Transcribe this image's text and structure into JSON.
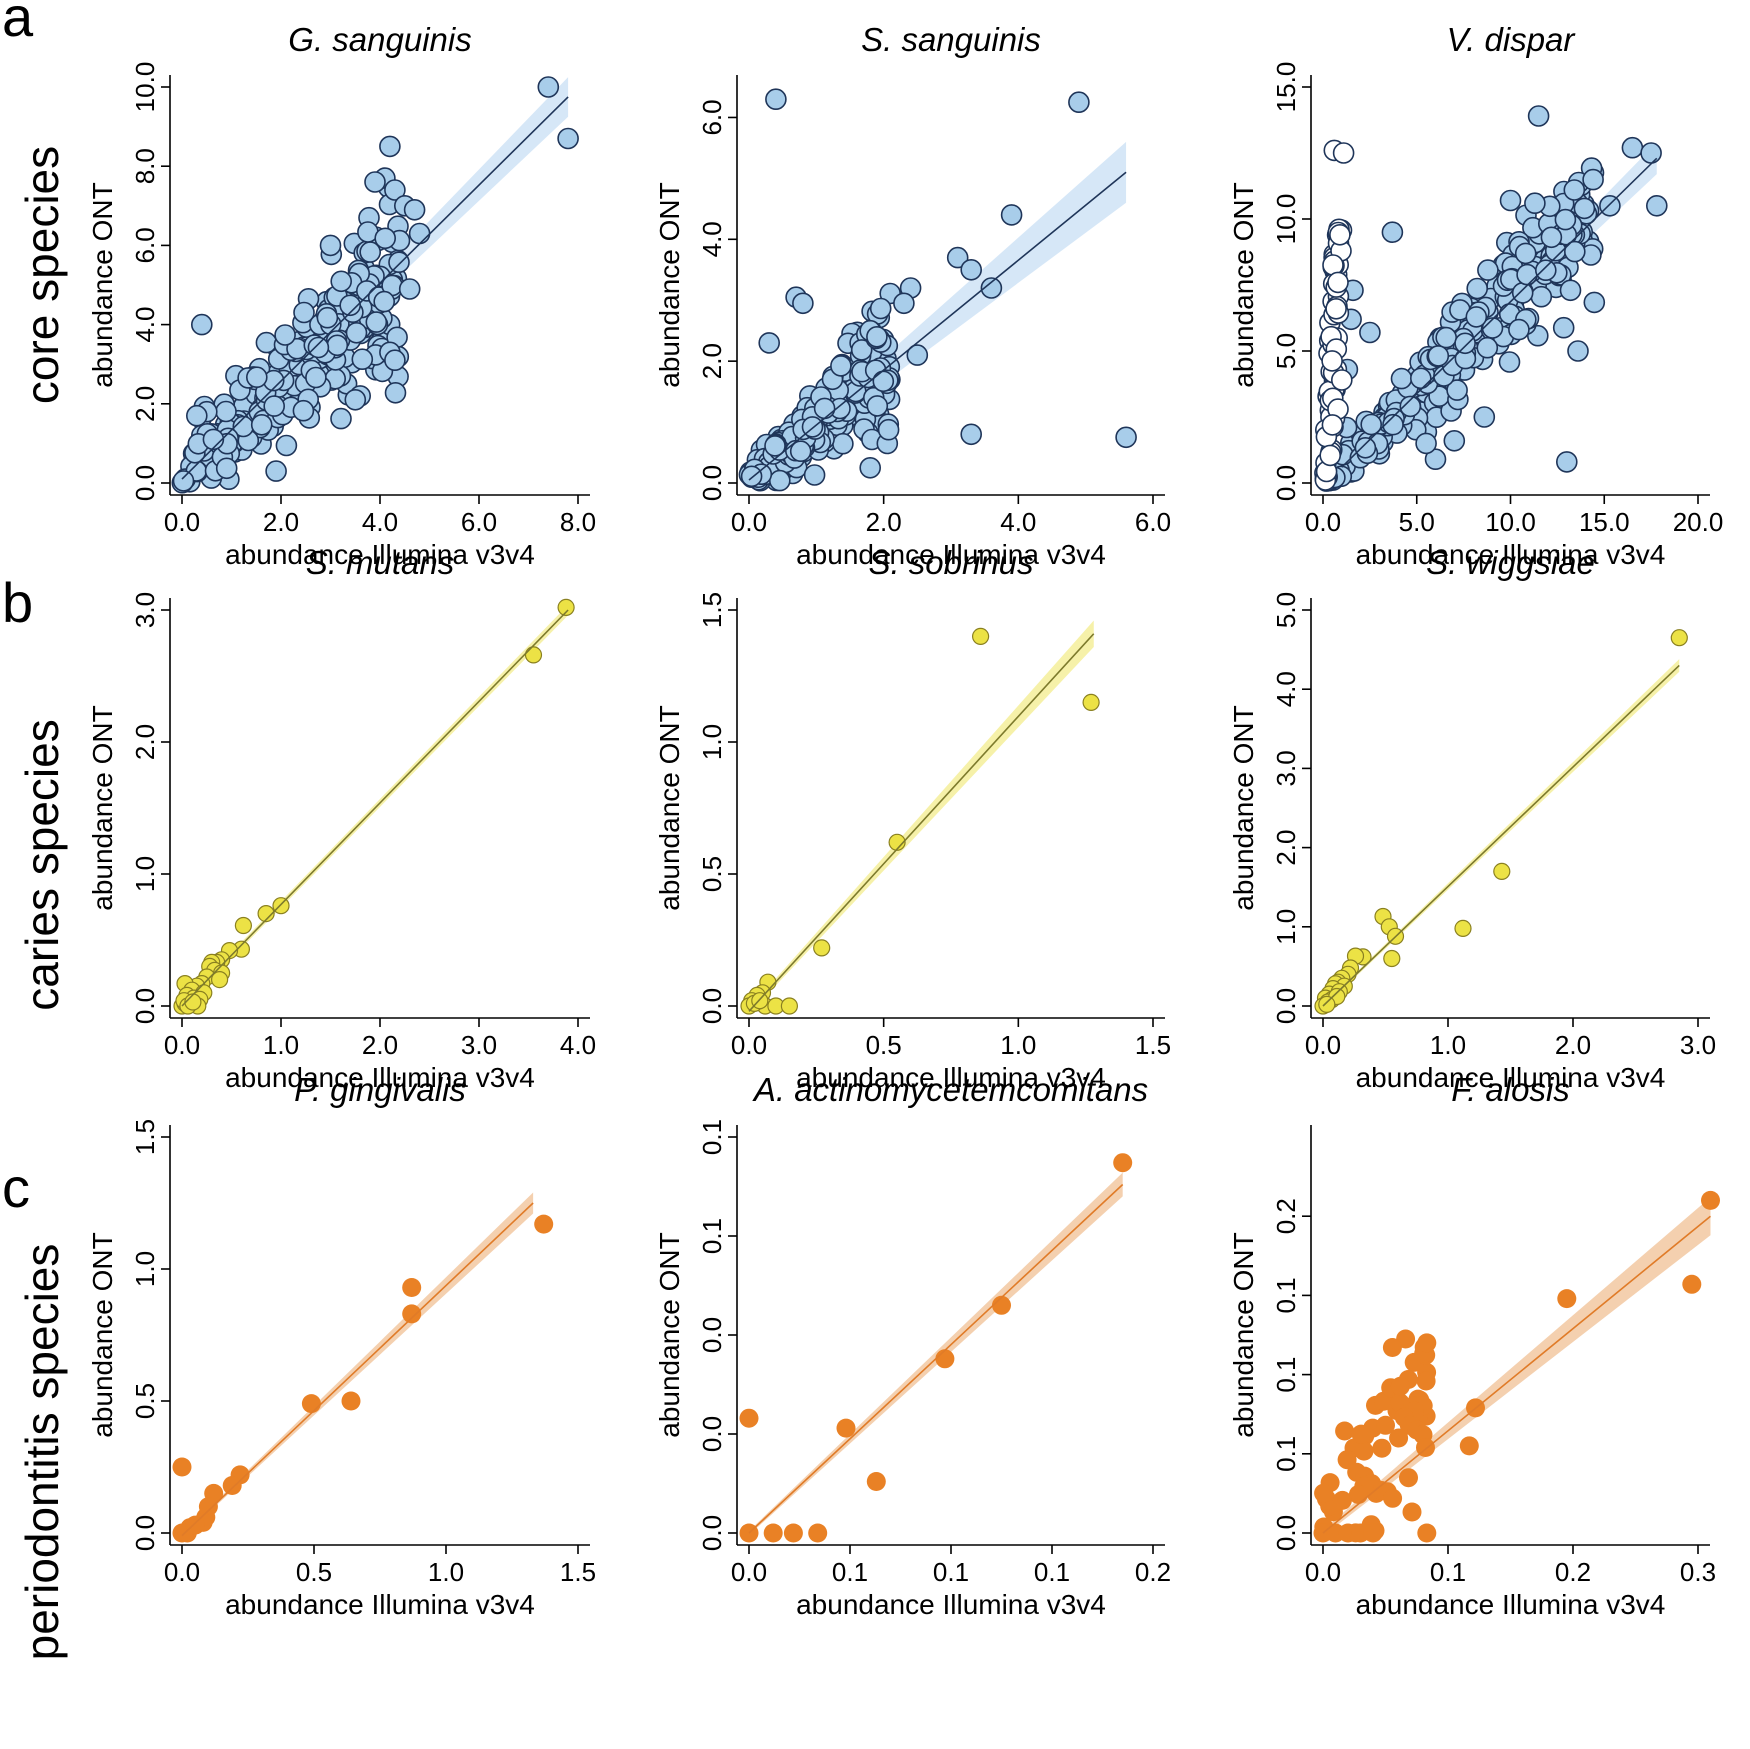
{
  "panel_letters": [
    "a",
    "b",
    "c"
  ],
  "row_labels": [
    "core species",
    "caries species",
    "periodontitis species"
  ],
  "colors": {
    "core_fill": "#a8cdea",
    "core_stroke": "#1f3559",
    "core_band": "#cfe3f6",
    "core_line": "#1f3559",
    "caries_fill": "#ece245",
    "caries_stroke": "#8a8020",
    "caries_band": "#f4ef9a",
    "caries_line": "#7d7a2c",
    "perio_fill": "#e98125",
    "perio_stroke": "#e98125",
    "perio_band": "#f2c8a1",
    "perio_line": "#e07b28",
    "hollow_fill": "#ffffff"
  },
  "chart_data": [
    {
      "type": "scatter",
      "row": 0,
      "col": 0,
      "palette": "core",
      "title": "G. sanguinis",
      "xlabel": "abundance Illumina v3v4",
      "ylabel": "abundance ONT",
      "xlim": [
        0,
        8
      ],
      "ylim": [
        0,
        10
      ],
      "xticks": [
        0,
        2,
        4,
        6,
        8
      ],
      "xtick_labels": [
        "0.0",
        "2.0",
        "4.0",
        "6.0",
        "8.0"
      ],
      "yticks": [
        0,
        2,
        4,
        6,
        8,
        10
      ],
      "ytick_labels": [
        "0.0",
        "2.0",
        "4.0",
        "6.0",
        "8.0",
        "10.0"
      ],
      "fit": {
        "x1": 0.0,
        "y1": 0.1,
        "x2": 7.8,
        "y2": 9.75,
        "band": [
          0.05,
          0.5
        ]
      },
      "cloud": {
        "n": 320,
        "xmax": 4.4,
        "slope": 1.2,
        "intercept": 0.1,
        "spread": 0.8,
        "seed": 11
      },
      "points": [
        [
          7.4,
          10.0
        ],
        [
          7.8,
          8.7
        ],
        [
          4.2,
          8.5
        ],
        [
          4.1,
          7.7
        ],
        [
          3.9,
          7.6
        ],
        [
          4.3,
          7.4
        ],
        [
          4.5,
          7.0
        ],
        [
          4.7,
          6.9
        ],
        [
          4.8,
          6.3
        ],
        [
          3.0,
          6.0
        ],
        [
          0.4,
          4.0
        ],
        [
          4.6,
          4.9
        ],
        [
          4.2,
          3.3
        ],
        [
          4.3,
          3.1
        ],
        [
          3.6,
          2.2
        ],
        [
          3.5,
          2.1
        ],
        [
          1.9,
          0.3
        ],
        [
          0.5,
          1.8
        ],
        [
          0.3,
          1.7
        ]
      ]
    },
    {
      "type": "scatter",
      "row": 0,
      "col": 1,
      "palette": "core",
      "title": "S. sanguinis",
      "xlabel": "abundance Illumina v3v4",
      "ylabel": "abundance ONT",
      "xlim": [
        0,
        6
      ],
      "ylim": [
        0,
        6.5
      ],
      "xticks": [
        0,
        2,
        4,
        6
      ],
      "xtick_labels": [
        "0.0",
        "2.0",
        "4.0",
        "6.0"
      ],
      "yticks": [
        0,
        2,
        4,
        6
      ],
      "ytick_labels": [
        "0.0",
        "2.0",
        "4.0",
        "6.0"
      ],
      "fit": {
        "x1": 0.0,
        "y1": 0.05,
        "x2": 5.6,
        "y2": 5.1,
        "band": [
          0.05,
          0.5
        ]
      },
      "cloud": {
        "n": 260,
        "xmax": 2.1,
        "slope": 0.95,
        "intercept": 0.05,
        "spread": 0.35,
        "seed": 23
      },
      "points": [
        [
          0.4,
          6.3
        ],
        [
          4.9,
          6.25
        ],
        [
          3.9,
          4.4
        ],
        [
          3.1,
          3.7
        ],
        [
          3.3,
          3.5
        ],
        [
          3.6,
          3.2
        ],
        [
          2.4,
          3.2
        ],
        [
          2.3,
          2.95
        ],
        [
          0.7,
          3.05
        ],
        [
          0.8,
          2.95
        ],
        [
          0.3,
          2.3
        ],
        [
          1.8,
          0.25
        ],
        [
          3.3,
          0.8
        ],
        [
          5.6,
          0.75
        ],
        [
          2.5,
          2.1
        ],
        [
          1.8,
          2.5
        ],
        [
          1.9,
          2.4
        ]
      ]
    },
    {
      "type": "scatter",
      "row": 0,
      "col": 2,
      "palette": "core",
      "title": "V. dispar",
      "xlabel": "abundance Illumina v3v4",
      "ylabel": "abundance ONT",
      "xlim": [
        0,
        20
      ],
      "ylim": [
        0,
        15
      ],
      "xticks": [
        0,
        5,
        10,
        15,
        20
      ],
      "xtick_labels": [
        "0.0",
        "5.0",
        "10.0",
        "15.0",
        "20.0"
      ],
      "yticks": [
        0,
        5,
        10,
        15
      ],
      "ytick_labels": [
        "0.0",
        "5.0",
        "10.0",
        "15.0"
      ],
      "fit": {
        "x1": 1.0,
        "y1": 0.6,
        "x2": 17.8,
        "y2": 12.3,
        "band": [
          0.1,
          0.6
        ]
      },
      "cloud": {
        "n": 300,
        "xmax": 14.5,
        "slope": 0.7,
        "intercept": -0.1,
        "spread": 1.0,
        "seed": 37
      },
      "hollow_cloud": {
        "n": 60,
        "xmin": 0.0,
        "xmax": 1.0,
        "ymax": 9.7,
        "seed": 41
      },
      "points": [
        [
          11.5,
          13.9
        ],
        [
          16.5,
          12.7
        ],
        [
          17.5,
          12.5
        ],
        [
          17.8,
          10.5
        ],
        [
          10.0,
          10.7
        ],
        [
          11.3,
          10.6
        ],
        [
          13.4,
          11.1
        ],
        [
          15.3,
          10.5
        ],
        [
          13.2,
          7.3
        ],
        [
          13.6,
          5.0
        ],
        [
          3.7,
          9.5
        ],
        [
          1.6,
          7.3
        ],
        [
          1.5,
          6.2
        ],
        [
          2.5,
          5.7
        ],
        [
          13.0,
          0.8
        ],
        [
          6.0,
          0.9
        ],
        [
          8.6,
          2.5
        ],
        [
          5.5,
          1.5
        ],
        [
          7.0,
          1.6
        ],
        [
          1.3,
          4.3
        ]
      ],
      "hollow_points": [
        [
          0.6,
          12.6
        ],
        [
          1.1,
          12.5
        ],
        [
          0.9,
          9.4
        ],
        [
          0.8,
          7.6
        ],
        [
          0.7,
          6.6
        ],
        [
          1.0,
          3.9
        ],
        [
          0.8,
          2.8
        ],
        [
          0.5,
          2.2
        ]
      ]
    },
    {
      "type": "scatter",
      "row": 1,
      "col": 0,
      "palette": "caries",
      "title": "S. mutans",
      "xlabel": "abundance Illumina v3v4",
      "ylabel": "abundance ONT",
      "xlim": [
        0,
        4
      ],
      "ylim": [
        0,
        3
      ],
      "xticks": [
        0,
        1,
        2,
        3,
        4
      ],
      "xtick_labels": [
        "0.0",
        "1.0",
        "2.0",
        "3.0",
        "4.0"
      ],
      "yticks": [
        0,
        1,
        2,
        3
      ],
      "ytick_labels": [
        "0.0",
        "1.0",
        "2.0",
        "3.0"
      ],
      "fit": {
        "x1": 0.0,
        "y1": 0.0,
        "x2": 3.9,
        "y2": 3.0,
        "band": [
          0.02,
          0.04
        ]
      },
      "points": [
        [
          3.88,
          3.02
        ],
        [
          3.55,
          2.66
        ],
        [
          1.0,
          0.76
        ],
        [
          0.85,
          0.7
        ],
        [
          0.62,
          0.61
        ],
        [
          0.6,
          0.43
        ],
        [
          0.48,
          0.42
        ],
        [
          0.4,
          0.35
        ],
        [
          0.35,
          0.33
        ],
        [
          0.3,
          0.33
        ],
        [
          0.28,
          0.3
        ],
        [
          0.33,
          0.27
        ],
        [
          0.4,
          0.25
        ],
        [
          0.25,
          0.22
        ],
        [
          0.38,
          0.2
        ],
        [
          0.2,
          0.17
        ],
        [
          0.15,
          0.15
        ],
        [
          0.03,
          0.17
        ],
        [
          0.1,
          0.12
        ],
        [
          0.22,
          0.1
        ],
        [
          0.05,
          0.08
        ],
        [
          0.12,
          0.06
        ],
        [
          0.18,
          0.05
        ],
        [
          0.0,
          0.0
        ],
        [
          0.03,
          0.02
        ],
        [
          0.08,
          0.02
        ],
        [
          0.16,
          0.0
        ],
        [
          0.02,
          0.04
        ],
        [
          0.06,
          0.0
        ],
        [
          0.11,
          0.03
        ]
      ]
    },
    {
      "type": "scatter",
      "row": 1,
      "col": 1,
      "palette": "caries",
      "title": "S. sobrinus",
      "xlabel": "abundance Illumina v3v4",
      "ylabel": "abundance ONT",
      "xlim": [
        0,
        1.5
      ],
      "ylim": [
        0,
        1.5
      ],
      "xticks": [
        0,
        0.5,
        1.0,
        1.5
      ],
      "xtick_labels": [
        "0.0",
        "0.5",
        "1.0",
        "1.5"
      ],
      "yticks": [
        0,
        0.5,
        1.0,
        1.5
      ],
      "ytick_labels": [
        "0.0",
        "0.5",
        "1.0",
        "1.5"
      ],
      "fit": {
        "x1": 0.0,
        "y1": -0.02,
        "x2": 1.28,
        "y2": 1.41,
        "band": [
          0.01,
          0.05
        ]
      },
      "points": [
        [
          0.86,
          1.4
        ],
        [
          1.27,
          1.15
        ],
        [
          0.55,
          0.62
        ],
        [
          0.27,
          0.22
        ],
        [
          0.07,
          0.09
        ],
        [
          0.05,
          0.05
        ],
        [
          0.03,
          0.04
        ],
        [
          0.01,
          0.02
        ],
        [
          0.0,
          0.0
        ],
        [
          0.06,
          0.0
        ],
        [
          0.1,
          0.0
        ],
        [
          0.15,
          0.0
        ],
        [
          0.02,
          0.01
        ],
        [
          0.04,
          0.02
        ]
      ]
    },
    {
      "type": "scatter",
      "row": 1,
      "col": 2,
      "palette": "caries",
      "title": "S. wiggsiae",
      "xlabel": "abundance Illumina v3v4",
      "ylabel": "abundance ONT",
      "xlim": [
        0,
        3
      ],
      "ylim": [
        0,
        5
      ],
      "xticks": [
        0,
        1,
        2,
        3
      ],
      "xtick_labels": [
        "0.0",
        "1.0",
        "2.0",
        "3.0"
      ],
      "yticks": [
        0,
        1,
        2,
        3,
        4,
        5
      ],
      "ytick_labels": [
        "0.0",
        "1.0",
        "2.0",
        "3.0",
        "4.0",
        "5.0"
      ],
      "fit": {
        "x1": 0.0,
        "y1": 0.0,
        "x2": 2.85,
        "y2": 4.3,
        "band": [
          0.02,
          0.08
        ]
      },
      "points": [
        [
          2.85,
          4.65
        ],
        [
          1.43,
          1.7
        ],
        [
          1.12,
          0.98
        ],
        [
          0.48,
          1.13
        ],
        [
          0.53,
          1.0
        ],
        [
          0.58,
          0.88
        ],
        [
          0.55,
          0.6
        ],
        [
          0.32,
          0.62
        ],
        [
          0.26,
          0.63
        ],
        [
          0.22,
          0.48
        ],
        [
          0.2,
          0.4
        ],
        [
          0.15,
          0.35
        ],
        [
          0.12,
          0.3
        ],
        [
          0.1,
          0.28
        ],
        [
          0.17,
          0.25
        ],
        [
          0.08,
          0.22
        ],
        [
          0.05,
          0.15
        ],
        [
          0.13,
          0.18
        ],
        [
          0.02,
          0.1
        ],
        [
          0.07,
          0.08
        ],
        [
          0.0,
          0.0
        ],
        [
          0.04,
          0.05
        ],
        [
          0.11,
          0.12
        ],
        [
          0.03,
          0.02
        ]
      ]
    },
    {
      "type": "scatter",
      "row": 2,
      "col": 0,
      "palette": "perio",
      "title": "P. gingivalis",
      "xlabel": "abundance Illumina v3v4",
      "ylabel": "abundance ONT",
      "xlim": [
        0,
        1.5
      ],
      "ylim": [
        0,
        1.5
      ],
      "xticks": [
        0,
        0.5,
        1.0,
        1.5
      ],
      "xtick_labels": [
        "0.0",
        "0.5",
        "1.0",
        "1.5"
      ],
      "yticks": [
        0,
        0.5,
        1.0,
        1.5
      ],
      "ytick_labels": [
        "0.0",
        "0.5",
        "1.0",
        "1.5"
      ],
      "fit": {
        "x1": 0.0,
        "y1": -0.01,
        "x2": 1.33,
        "y2": 1.25,
        "band": [
          0.005,
          0.04
        ]
      },
      "points": [
        [
          1.37,
          1.17
        ],
        [
          0.87,
          0.93
        ],
        [
          0.87,
          0.83
        ],
        [
          0.64,
          0.5
        ],
        [
          0.49,
          0.49
        ],
        [
          0.22,
          0.22
        ],
        [
          0.19,
          0.18
        ],
        [
          0.12,
          0.15
        ],
        [
          0.1,
          0.1
        ],
        [
          0.09,
          0.06
        ],
        [
          0.08,
          0.04
        ],
        [
          0.0,
          0.25
        ],
        [
          0.03,
          0.02
        ],
        [
          0.0,
          0.0
        ],
        [
          0.02,
          0.0
        ],
        [
          0.05,
          0.03
        ]
      ]
    },
    {
      "type": "scatter",
      "row": 2,
      "col": 1,
      "palette": "perio",
      "title": "A. actinomycetemcomitans",
      "xlabel": "abundance Illumina v3v4",
      "ylabel": "abundance ONT",
      "xlim": [
        0,
        0.2
      ],
      "ylim": [
        0,
        0.2
      ],
      "xticks": [
        0,
        0.05,
        0.1,
        0.15,
        0.2
      ],
      "xtick_labels": [
        "0.0",
        "0.1",
        "0.1",
        "0.1",
        "0.2"
      ],
      "yticks": [
        0,
        0.05,
        0.1,
        0.15,
        0.2
      ],
      "ytick_labels": [
        "0.0",
        "0.0",
        "0.0",
        "0.1",
        "0.1"
      ],
      "fit": {
        "x1": 0.0,
        "y1": 0.0,
        "x2": 0.185,
        "y2": 0.176,
        "band": [
          0.001,
          0.006
        ]
      },
      "points": [
        [
          0.185,
          0.187
        ],
        [
          0.125,
          0.115
        ],
        [
          0.097,
          0.088
        ],
        [
          0.048,
          0.053
        ],
        [
          0.063,
          0.026
        ],
        [
          0.0,
          0.058
        ],
        [
          0.0,
          0.0
        ],
        [
          0.012,
          0.0
        ],
        [
          0.022,
          0.0
        ],
        [
          0.034,
          0.0
        ]
      ]
    },
    {
      "type": "scatter",
      "row": 2,
      "col": 2,
      "palette": "perio",
      "title": "F. alosis",
      "xlabel": "abundance Illumina v3v4",
      "ylabel": "abundance ONT",
      "xlim": [
        0,
        0.3
      ],
      "ylim": [
        0,
        0.25
      ],
      "xticks": [
        0,
        0.1,
        0.2,
        0.3
      ],
      "xtick_labels": [
        "0.0",
        "0.1",
        "0.2",
        "0.3"
      ],
      "yticks": [
        0,
        0.05,
        0.1,
        0.15,
        0.2
      ],
      "ytick_labels": [
        "0.0",
        "0.1",
        "0.1",
        "0.1",
        "0.2"
      ],
      "fit": {
        "x1": 0.0,
        "y1": 0.0,
        "x2": 0.31,
        "y2": 0.2,
        "band": [
          0.002,
          0.012
        ]
      },
      "cloud": {
        "n": 55,
        "xmax": 0.085,
        "slope": 0.72,
        "intercept": 0.015,
        "spread": 0.03,
        "seed": 59,
        "clip_low": 0.0
      },
      "points": [
        [
          0.31,
          0.21
        ],
        [
          0.295,
          0.157
        ],
        [
          0.195,
          0.148
        ],
        [
          0.083,
          0.12
        ],
        [
          0.122,
          0.079
        ],
        [
          0.117,
          0.055
        ],
        [
          0.072,
          0.08
        ],
        [
          0.073,
          0.077
        ],
        [
          0.065,
          0.073
        ],
        [
          0.069,
          0.068
        ],
        [
          0.075,
          0.065
        ],
        [
          0.05,
          0.068
        ],
        [
          0.08,
          0.062
        ],
        [
          0.082,
          0.054
        ],
        [
          0.0,
          0.0
        ],
        [
          0.01,
          0.0
        ],
        [
          0.02,
          0.0
        ],
        [
          0.03,
          0.0
        ],
        [
          0.04,
          0.0
        ],
        [
          0.083,
          0.0
        ]
      ]
    }
  ]
}
